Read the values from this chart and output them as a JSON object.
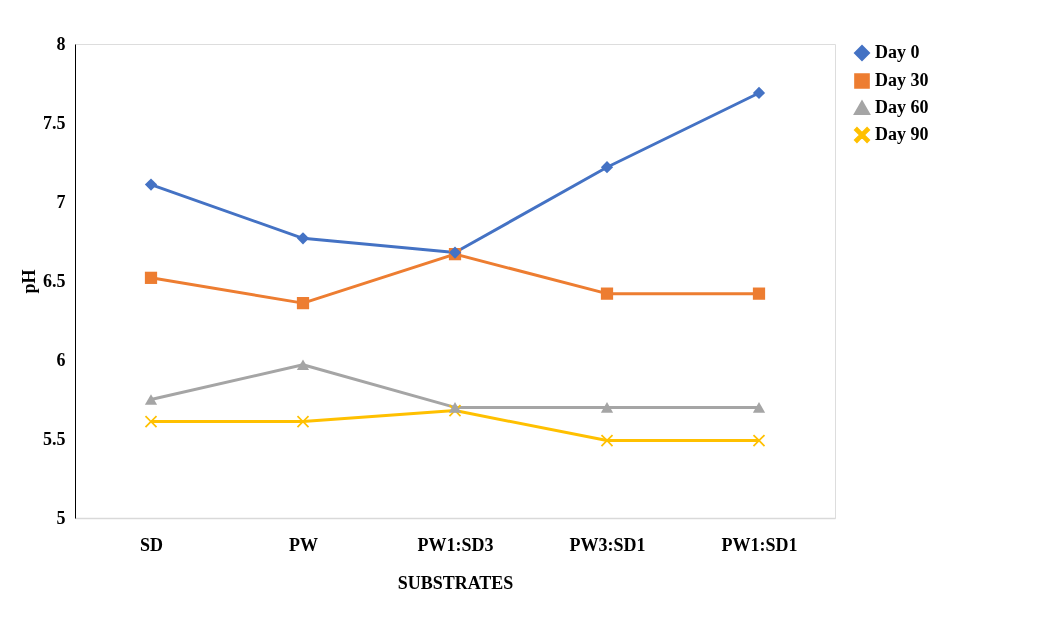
{
  "chart_data": {
    "type": "line",
    "xlabel": "SUBSTRATES",
    "ylabel": "pH",
    "categories": [
      "SD",
      "PW",
      "PW1:SD3",
      "PW3:SD1",
      "PW1:SD1"
    ],
    "series": [
      {
        "name": "Day 0",
        "color": "#4472c4",
        "marker": "diamond",
        "values": [
          7.11,
          6.77,
          6.68,
          7.22,
          7.69
        ]
      },
      {
        "name": "Day 30",
        "color": "#ed7d31",
        "marker": "square",
        "values": [
          6.52,
          6.36,
          6.67,
          6.42,
          6.42
        ]
      },
      {
        "name": "Day 60",
        "color": "#a5a5a5",
        "marker": "triangle",
        "values": [
          5.75,
          5.97,
          5.7,
          5.7,
          5.7
        ]
      },
      {
        "name": "Day 90",
        "color": "#ffc000",
        "marker": "cross",
        "values": [
          5.61,
          5.61,
          5.68,
          5.49,
          5.49
        ]
      }
    ],
    "ylim": [
      5,
      8
    ],
    "yticks": [
      5,
      5.5,
      6,
      6.5,
      7,
      7.5,
      8
    ],
    "grid": false,
    "legend": "right",
    "line_style": "solid"
  }
}
